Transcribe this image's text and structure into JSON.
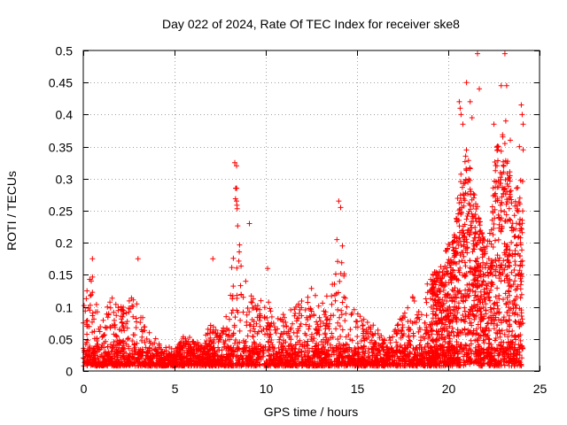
{
  "chart_data": {
    "type": "scatter",
    "title": "Day 022 of 2024, Rate Of TEC Index for receiver ske8",
    "xlabel": "GPS time / hours",
    "ylabel": "ROTI / TECUs",
    "xlim": [
      0,
      25
    ],
    "ylim": [
      0,
      0.5
    ],
    "x_ticks": [
      0,
      5,
      10,
      15,
      20,
      25
    ],
    "y_ticks": [
      0,
      0.05,
      0.1,
      0.15,
      0.2,
      0.25,
      0.3,
      0.35,
      0.4,
      0.45,
      0.5
    ],
    "x_tick_labels": [
      "0",
      "5",
      "10",
      "15",
      "20",
      "25"
    ],
    "y_tick_labels": [
      "0",
      "0.05",
      "0.1",
      "0.15",
      "0.2",
      "0.25",
      "0.3",
      "0.35",
      "0.4",
      "0.45",
      "0.5"
    ],
    "grid": true,
    "marker": "+",
    "color": "#ff0000",
    "envelope": [
      [
        0.0,
        0.1
      ],
      [
        0.2,
        0.13
      ],
      [
        0.5,
        0.16
      ],
      [
        0.7,
        0.11
      ],
      [
        1.0,
        0.07
      ],
      [
        1.5,
        0.12
      ],
      [
        2.0,
        0.1
      ],
      [
        2.5,
        0.11
      ],
      [
        3.0,
        0.13
      ],
      [
        3.5,
        0.07
      ],
      [
        4.0,
        0.05
      ],
      [
        4.5,
        0.03
      ],
      [
        5.0,
        0.025
      ],
      [
        5.5,
        0.06
      ],
      [
        6.0,
        0.05
      ],
      [
        6.5,
        0.04
      ],
      [
        7.0,
        0.08
      ],
      [
        7.5,
        0.06
      ],
      [
        8.0,
        0.1
      ],
      [
        8.4,
        0.3
      ],
      [
        8.8,
        0.15
      ],
      [
        9.0,
        0.14
      ],
      [
        9.5,
        0.11
      ],
      [
        10.0,
        0.12
      ],
      [
        10.5,
        0.08
      ],
      [
        11.0,
        0.09
      ],
      [
        11.5,
        0.1
      ],
      [
        12.0,
        0.11
      ],
      [
        12.5,
        0.13
      ],
      [
        13.0,
        0.12
      ],
      [
        13.5,
        0.12
      ],
      [
        14.0,
        0.22
      ],
      [
        14.5,
        0.11
      ],
      [
        15.0,
        0.09
      ],
      [
        15.5,
        0.08
      ],
      [
        16.0,
        0.07
      ],
      [
        16.5,
        0.05
      ],
      [
        17.0,
        0.06
      ],
      [
        17.5,
        0.09
      ],
      [
        18.0,
        0.12
      ],
      [
        18.5,
        0.11
      ],
      [
        19.0,
        0.15
      ],
      [
        19.5,
        0.16
      ],
      [
        20.0,
        0.2
      ],
      [
        20.3,
        0.21
      ],
      [
        20.6,
        0.3
      ],
      [
        21.0,
        0.35
      ],
      [
        21.3,
        0.3
      ],
      [
        21.6,
        0.26
      ],
      [
        22.0,
        0.2
      ],
      [
        22.3,
        0.22
      ],
      [
        22.6,
        0.35
      ],
      [
        23.0,
        0.38
      ],
      [
        23.3,
        0.32
      ],
      [
        23.6,
        0.28
      ],
      [
        24.0,
        0.3
      ]
    ],
    "outliers": [
      [
        0.5,
        0.175
      ],
      [
        3.0,
        0.175
      ],
      [
        7.1,
        0.175
      ],
      [
        8.3,
        0.325
      ],
      [
        8.4,
        0.32
      ],
      [
        8.35,
        0.285
      ],
      [
        8.4,
        0.265
      ],
      [
        9.1,
        0.23
      ],
      [
        10.1,
        0.16
      ],
      [
        14.0,
        0.265
      ],
      [
        14.1,
        0.255
      ],
      [
        13.9,
        0.205
      ],
      [
        14.2,
        0.195
      ],
      [
        20.6,
        0.42
      ],
      [
        20.65,
        0.41
      ],
      [
        20.7,
        0.4
      ],
      [
        20.8,
        0.385
      ],
      [
        21.0,
        0.45
      ],
      [
        21.2,
        0.42
      ],
      [
        21.3,
        0.395
      ],
      [
        21.6,
        0.495
      ],
      [
        21.7,
        0.44
      ],
      [
        22.5,
        0.385
      ],
      [
        22.7,
        0.345
      ],
      [
        22.9,
        0.445
      ],
      [
        23.1,
        0.495
      ],
      [
        23.2,
        0.445
      ],
      [
        23.15,
        0.39
      ],
      [
        23.4,
        0.36
      ],
      [
        24.0,
        0.415
      ],
      [
        24.05,
        0.4
      ],
      [
        24.1,
        0.385
      ],
      [
        23.9,
        0.35
      ],
      [
        24.1,
        0.345
      ]
    ]
  }
}
